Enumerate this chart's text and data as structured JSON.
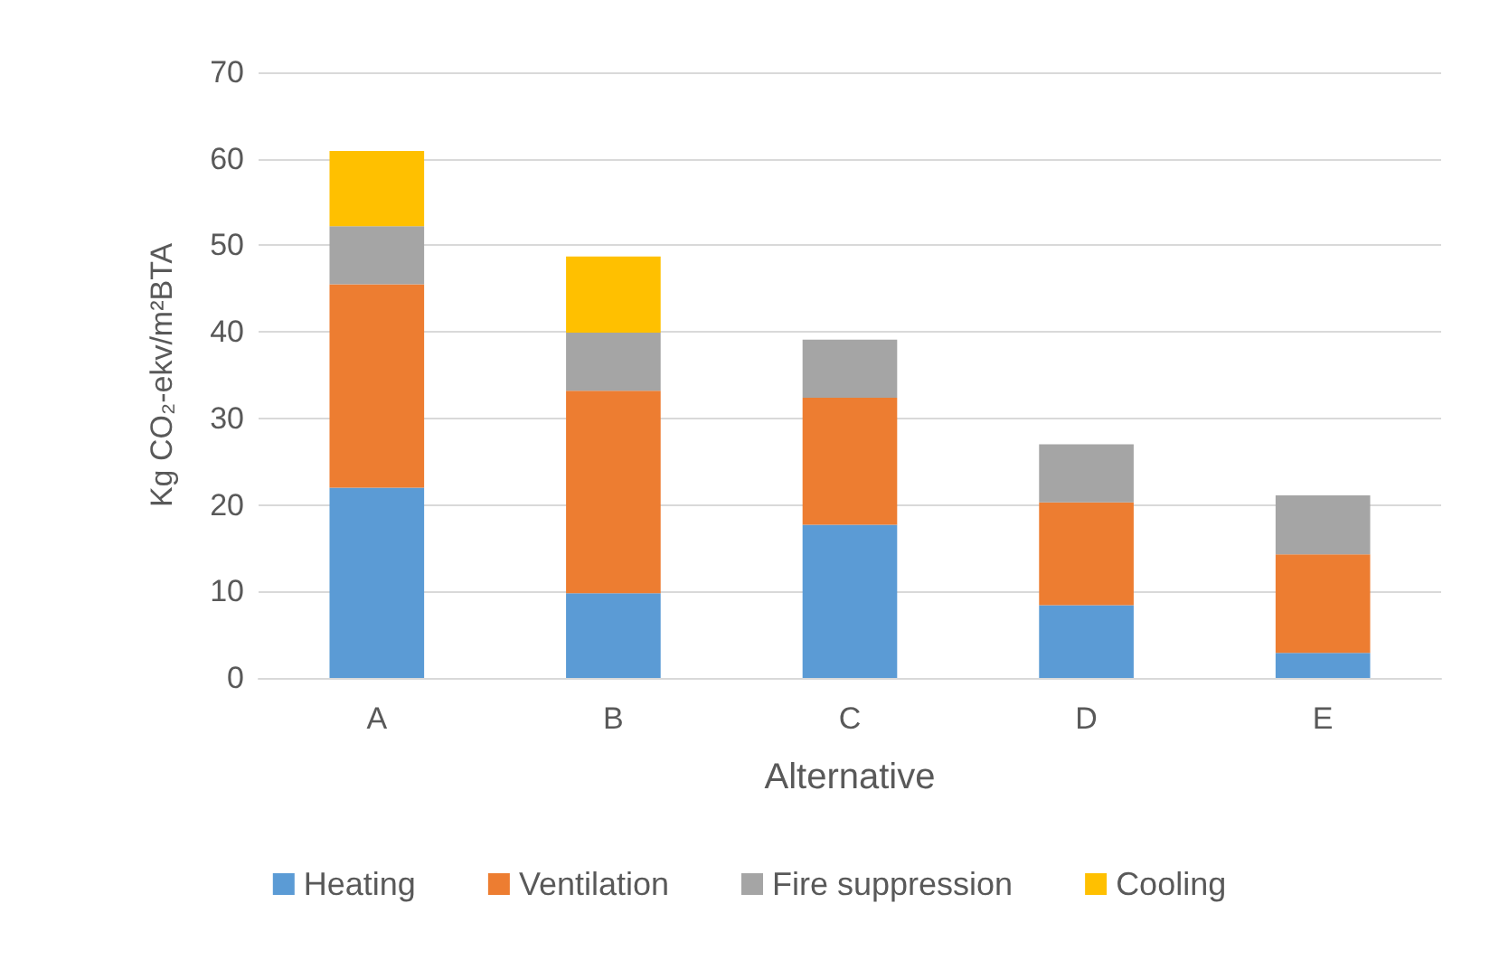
{
  "chart_data": {
    "type": "bar",
    "stacked": true,
    "xlabel": "Alternative",
    "ylabel": "Kg CO₂-ekv/m²BTA",
    "categories": [
      "A",
      "B",
      "C",
      "D",
      "E"
    ],
    "series": [
      {
        "name": "Heating",
        "color": "#5b9bd5",
        "values": [
          22,
          9.8,
          17.7,
          8.4,
          2.9
        ]
      },
      {
        "name": "Ventilation",
        "color": "#ed7d31",
        "values": [
          23.5,
          23.4,
          14.7,
          11.9,
          11.4
        ]
      },
      {
        "name": "Fire suppression",
        "color": "#a5a5a5",
        "values": [
          6.7,
          6.7,
          6.7,
          6.7,
          6.8
        ]
      },
      {
        "name": "Cooling",
        "color": "#ffc000",
        "values": [
          8.7,
          8.8,
          null,
          null,
          null
        ]
      }
    ],
    "ylim": [
      0,
      70
    ],
    "yticks": [
      0,
      10,
      20,
      30,
      40,
      50,
      60,
      70
    ],
    "grid": "y",
    "legend": "bottom"
  }
}
